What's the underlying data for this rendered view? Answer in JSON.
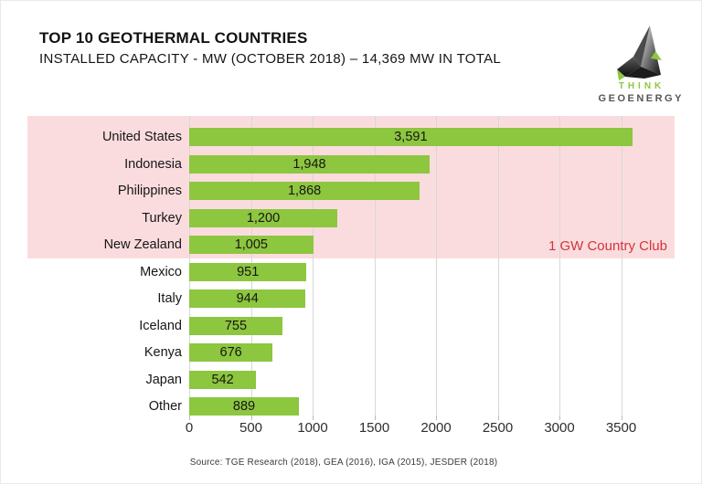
{
  "header": {
    "title": "TOP 10 GEOTHERMAL COUNTRIES",
    "subtitle": "INSTALLED CAPACITY - MW (OCTOBER 2018) – 14,369 MW IN TOTAL"
  },
  "logo": {
    "line1": "THINK",
    "line2": "GEOENERGY",
    "line1_color": "#8dc63f",
    "line2_color": "#55565a"
  },
  "chart_data": {
    "type": "bar",
    "orientation": "horizontal",
    "title": "TOP 10 GEOTHERMAL COUNTRIES",
    "subtitle": "INSTALLED CAPACITY - MW (OCTOBER 2018) – 14,369 MW IN TOTAL",
    "total_mw": "14,369",
    "categories": [
      "United States",
      "Indonesia",
      "Philippines",
      "Turkey",
      "New Zealand",
      "Mexico",
      "Italy",
      "Iceland",
      "Kenya",
      "Japan",
      "Other"
    ],
    "values": [
      3591,
      1948,
      1868,
      1200,
      1005,
      951,
      944,
      755,
      676,
      542,
      889
    ],
    "value_labels": [
      "3,591",
      "1,948",
      "1,868",
      "1,200",
      "1,005",
      "951",
      "944",
      "755",
      "676",
      "542",
      "889"
    ],
    "x_ticks": [
      0,
      500,
      1000,
      1500,
      2000,
      2500,
      3000,
      3500
    ],
    "xlim": [
      0,
      3900
    ],
    "xlabel": "",
    "ylabel": "",
    "grid": true,
    "legend": false,
    "annotation": "1 GW Country Club",
    "annotation_color": "#d2343a",
    "highlight_rows": 5,
    "highlight_color": "#fbdcde",
    "bar_color": "#8dc63f"
  },
  "footer": {
    "source": "Source: TGE Research (2018), GEA (2016), IGA (2015), JESDER (2018)"
  }
}
